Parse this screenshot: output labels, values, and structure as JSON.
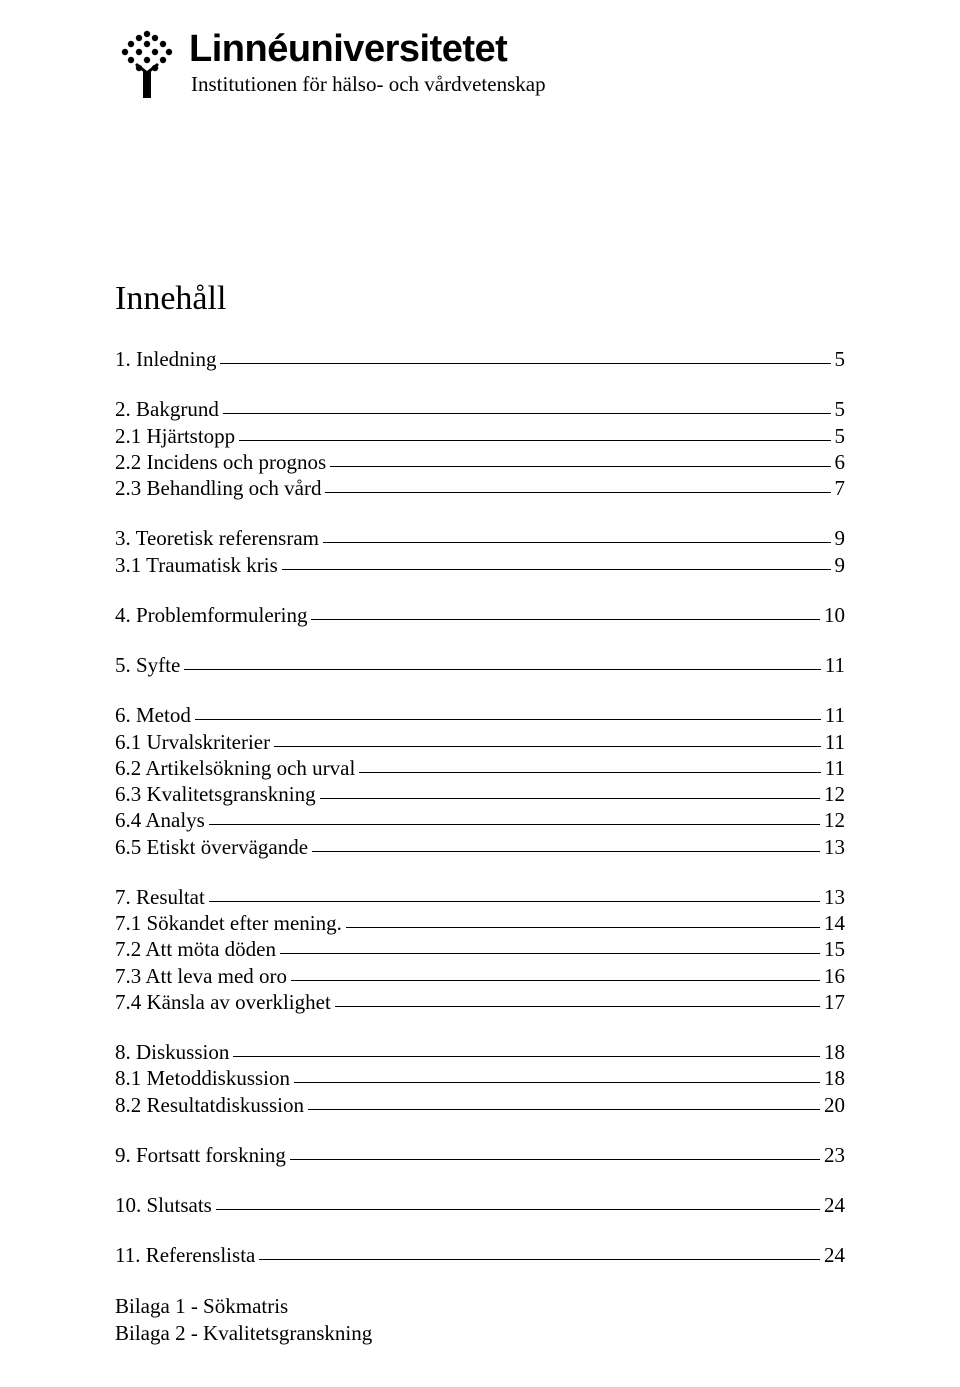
{
  "header": {
    "university": "Linnéuniversitetet",
    "department": "Institutionen för hälso- och vårdvetenskap"
  },
  "title": "Innehåll",
  "toc": [
    [
      {
        "label": "1. Inledning",
        "page": "5"
      }
    ],
    [
      {
        "label": "2. Bakgrund",
        "page": "5"
      },
      {
        "label": "2.1 Hjärtstopp",
        "page": "5"
      },
      {
        "label": "2.2  Incidens och prognos",
        "page": "6"
      },
      {
        "label": "2.3 Behandling och vård",
        "page": "7"
      }
    ],
    [
      {
        "label": "3. Teoretisk referensram",
        "page": "9"
      },
      {
        "label": "3.1 Traumatisk kris",
        "page": "9"
      }
    ],
    [
      {
        "label": "4. Problemformulering",
        "page": "10"
      }
    ],
    [
      {
        "label": "5. Syfte",
        "page": "11"
      }
    ],
    [
      {
        "label": "6. Metod",
        "page": "11"
      },
      {
        "label": "6.1 Urvalskriterier",
        "page": "11"
      },
      {
        "label": "6.2  Artikelsökning och urval",
        "page": "11"
      },
      {
        "label": "6.3 Kvalitetsgranskning",
        "page": "12"
      },
      {
        "label": "6.4 Analys",
        "page": "12"
      },
      {
        "label": "6.5 Etiskt övervägande",
        "page": "13"
      }
    ],
    [
      {
        "label": "7. Resultat",
        "page": "13"
      },
      {
        "label": "7.1 Sökandet efter mening.",
        "page": "14"
      },
      {
        "label": "7.2 Att möta döden",
        "page": "15"
      },
      {
        "label": "7.3 Att leva med oro",
        "page": "16"
      },
      {
        "label": "7.4 Känsla av overklighet",
        "page": "17"
      }
    ],
    [
      {
        "label": "8. Diskussion",
        "page": "18"
      },
      {
        "label": "8.1 Metoddiskussion",
        "page": "18"
      },
      {
        "label": "8.2 Resultatdiskussion",
        "page": "20"
      }
    ],
    [
      {
        "label": "9. Fortsatt forskning",
        "page": "23"
      }
    ],
    [
      {
        "label": "10. Slutsats",
        "page": "24"
      }
    ],
    [
      {
        "label": "11. Referenslista",
        "page": "24"
      }
    ]
  ],
  "appendix": [
    "Bilaga 1 - Sökmatris",
    "Bilaga 2 - Kvalitetsgranskning"
  ]
}
